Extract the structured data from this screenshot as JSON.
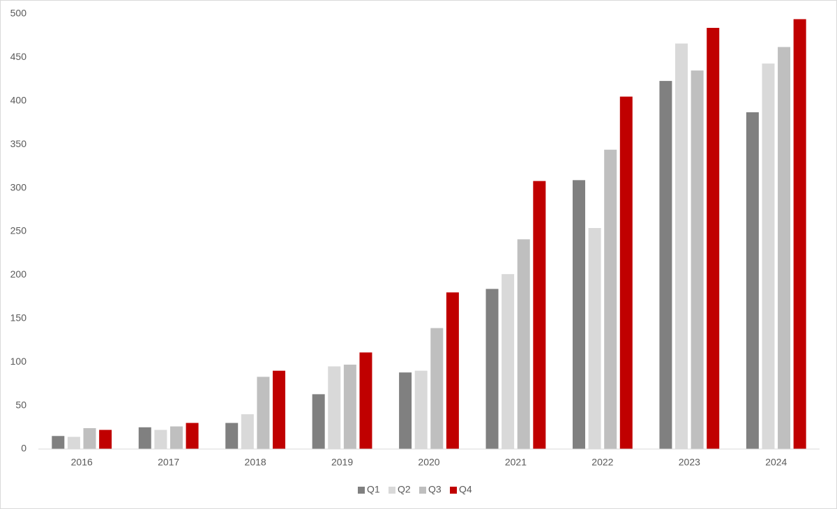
{
  "chart_data": {
    "type": "bar",
    "categories": [
      "2016",
      "2017",
      "2018",
      "2019",
      "2020",
      "2021",
      "2022",
      "2023",
      "2024"
    ],
    "series": [
      {
        "name": "Q1",
        "color": "#808080",
        "values": [
          15,
          25,
          30,
          63,
          88,
          184,
          309,
          423,
          387
        ]
      },
      {
        "name": "Q2",
        "color": "#d9d9d9",
        "values": [
          14,
          22,
          40,
          95,
          90,
          201,
          254,
          466,
          443
        ]
      },
      {
        "name": "Q3",
        "color": "#bfbfbf",
        "values": [
          24,
          26,
          83,
          97,
          139,
          241,
          344,
          435,
          462
        ]
      },
      {
        "name": "Q4",
        "color": "#c00000",
        "values": [
          22,
          30,
          90,
          111,
          180,
          308,
          405,
          484,
          494
        ]
      }
    ],
    "ylim": [
      0,
      500
    ],
    "yticks": [
      0,
      50,
      100,
      150,
      200,
      250,
      300,
      350,
      400,
      450,
      500
    ],
    "grid": false,
    "legend": "bottom"
  }
}
